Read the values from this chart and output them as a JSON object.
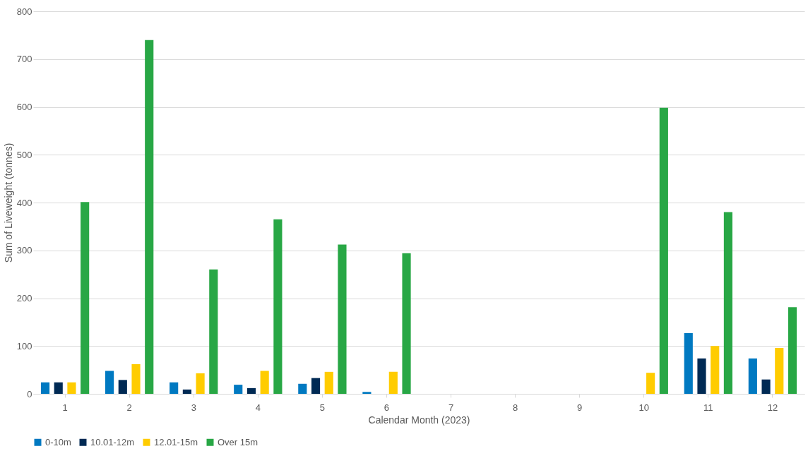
{
  "chart_data": {
    "type": "bar",
    "xlabel": "Calendar Month (2023)",
    "ylabel": "Sum of Liveweight (tonnes)",
    "categories": [
      "1",
      "2",
      "3",
      "4",
      "5",
      "6",
      "7",
      "8",
      "9",
      "10",
      "11",
      "12"
    ],
    "series": [
      {
        "name": "0-10m",
        "color": "#0079c1",
        "values": [
          24,
          48,
          24,
          19,
          21,
          4,
          null,
          null,
          null,
          null,
          127,
          74
        ]
      },
      {
        "name": "10.01-12m",
        "color": "#002a54",
        "values": [
          24,
          29,
          9,
          12,
          33,
          null,
          null,
          null,
          null,
          null,
          74,
          30
        ]
      },
      {
        "name": "12.01-15m",
        "color": "#ffcc00",
        "values": [
          24,
          62,
          43,
          48,
          46,
          46,
          null,
          null,
          null,
          44,
          100,
          96
        ]
      },
      {
        "name": "Over 15m",
        "color": "#28a745",
        "values": [
          401,
          740,
          260,
          365,
          312,
          294,
          null,
          null,
          null,
          598,
          380,
          181
        ]
      }
    ],
    "ylim": [
      0,
      800
    ],
    "yticks": [
      0,
      100,
      200,
      300,
      400,
      500,
      600,
      700,
      800
    ],
    "grid": "y",
    "legend": "bottom"
  }
}
